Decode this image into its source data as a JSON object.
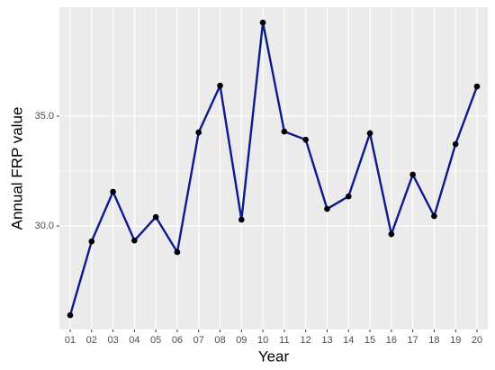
{
  "chart_data": {
    "type": "line",
    "x_label": "Year",
    "y_label": "Annual FRP value",
    "categories": [
      "01",
      "02",
      "03",
      "04",
      "05",
      "06",
      "07",
      "08",
      "09",
      "10",
      "11",
      "12",
      "13",
      "14",
      "15",
      "16",
      "17",
      "18",
      "19",
      "20"
    ],
    "series": [
      {
        "name": "Annual FRP value",
        "color": "#0d1a8c",
        "values": [
          25.94,
          29.3,
          31.56,
          29.34,
          30.41,
          28.81,
          34.26,
          36.39,
          30.29,
          39.26,
          34.3,
          33.93,
          30.78,
          31.35,
          34.22,
          29.63,
          32.34,
          30.45,
          33.73,
          36.35
        ]
      }
    ],
    "ylim": [
      25.29,
      39.96
    ],
    "yticks": [
      {
        "value": 30,
        "label": "30.0"
      },
      {
        "value": 35,
        "label": "35.0"
      }
    ],
    "grid": true
  }
}
